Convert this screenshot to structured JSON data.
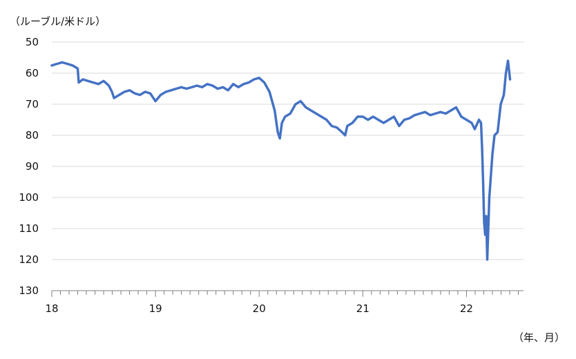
{
  "chart_data": {
    "type": "line",
    "title": "",
    "unit_label": "（ルーブル/米ドル）",
    "xlabel": "（年、月）",
    "ylabel": "",
    "y_inverted": true,
    "ylim": [
      50,
      130
    ],
    "yticks": [
      "50",
      "60",
      "70",
      "80",
      "90",
      "100",
      "110",
      "120",
      "130"
    ],
    "xlim": [
      2018.0,
      2022.55
    ],
    "xticks": [
      "18",
      "19",
      "20",
      "21",
      "22"
    ],
    "grid": "horizontal",
    "legend": "none",
    "color": "#4472C4",
    "series": [
      {
        "x": [
          2018.0,
          2018.05,
          2018.1,
          2018.15,
          2018.2,
          2018.25,
          2018.26,
          2018.3,
          2018.35,
          2018.4,
          2018.45,
          2018.5,
          2018.55,
          2018.58,
          2018.6,
          2018.65,
          2018.7,
          2018.75,
          2018.8,
          2018.85,
          2018.9,
          2018.95,
          2019.0,
          2019.05,
          2019.1,
          2019.15,
          2019.2,
          2019.25,
          2019.3,
          2019.35,
          2019.4,
          2019.45,
          2019.5,
          2019.55,
          2019.6,
          2019.65,
          2019.7,
          2019.75,
          2019.8,
          2019.85,
          2019.9,
          2019.95,
          2020.0,
          2020.05,
          2020.1,
          2020.15,
          2020.18,
          2020.2,
          2020.22,
          2020.25,
          2020.3,
          2020.35,
          2020.4,
          2020.45,
          2020.5,
          2020.55,
          2020.6,
          2020.65,
          2020.7,
          2020.75,
          2020.8,
          2020.83,
          2020.85,
          2020.9,
          2020.95,
          2021.0,
          2021.05,
          2021.1,
          2021.15,
          2021.2,
          2021.25,
          2021.3,
          2021.35,
          2021.4,
          2021.45,
          2021.5,
          2021.55,
          2021.6,
          2021.65,
          2021.7,
          2021.75,
          2021.8,
          2021.85,
          2021.9,
          2021.95,
          2022.0,
          2022.05,
          2022.08,
          2022.12,
          2022.14,
          2022.15,
          2022.16,
          2022.17,
          2022.18,
          2022.19,
          2022.2,
          2022.22,
          2022.25,
          2022.27,
          2022.3,
          2022.33,
          2022.36,
          2022.38,
          2022.4,
          2022.42
        ],
        "y": [
          57.5,
          57.0,
          56.5,
          57.0,
          57.5,
          58.5,
          63.0,
          62.0,
          62.5,
          63.0,
          63.5,
          62.5,
          64.0,
          66.0,
          68.0,
          67.0,
          66.0,
          65.5,
          66.5,
          67.0,
          66.0,
          66.5,
          69.0,
          67.0,
          66.0,
          65.5,
          65.0,
          64.5,
          65.0,
          64.5,
          64.0,
          64.5,
          63.5,
          64.0,
          65.0,
          64.5,
          65.5,
          63.5,
          64.5,
          63.5,
          63.0,
          62.0,
          61.5,
          63.0,
          66.0,
          72.0,
          79.0,
          81.0,
          76.0,
          74.0,
          73.0,
          70.0,
          69.0,
          71.0,
          72.0,
          73.0,
          74.0,
          75.0,
          77.0,
          77.5,
          79.0,
          80.0,
          77.0,
          76.0,
          74.0,
          74.0,
          75.0,
          74.0,
          75.0,
          76.0,
          75.0,
          74.0,
          77.0,
          75.0,
          74.5,
          73.5,
          73.0,
          72.5,
          73.5,
          73.0,
          72.5,
          73.0,
          72.0,
          71.0,
          74.0,
          75.0,
          76.0,
          78.0,
          75.0,
          76.0,
          84.0,
          95.0,
          108.0,
          112.0,
          106.0,
          120.0,
          100.0,
          86.0,
          80.0,
          79.0,
          70.0,
          67.0,
          60.0,
          56.0,
          62.0
        ]
      }
    ]
  }
}
